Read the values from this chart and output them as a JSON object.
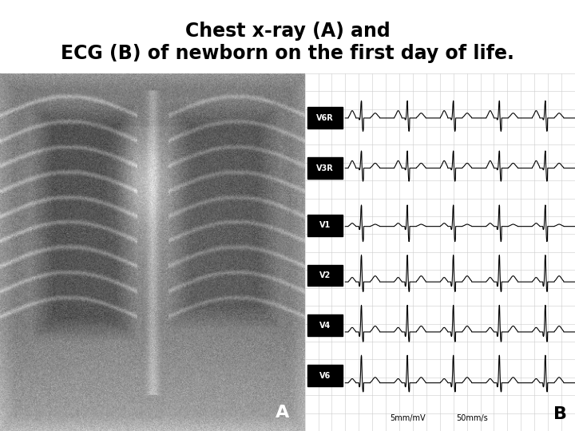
{
  "title_line1": "Chest x-ray (A) and",
  "title_line2": "ECG (B) of newborn on the first day of life.",
  "title_fontsize": 17,
  "title_fontweight": "bold",
  "bg_color": "#ffffff",
  "xray_bg": "#888888",
  "ecg_bg": "#f0f0f0",
  "ecg_labels": [
    "V6R",
    "V3R",
    "V1",
    "V2",
    "V4",
    "V6"
  ],
  "label_A": "A",
  "label_B": "B",
  "scale_text1": "5mm/mV",
  "scale_text2": "50mm/s"
}
